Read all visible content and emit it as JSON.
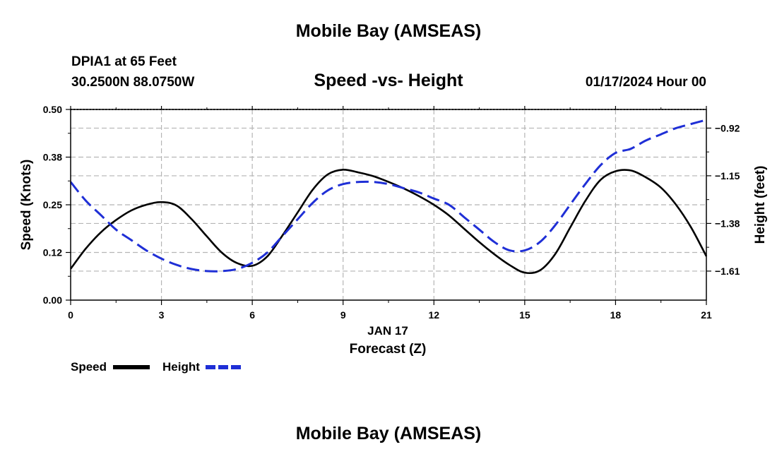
{
  "header": {
    "title": "Mobile Bay (AMSEAS)",
    "station": "DPIA1 at 65 Feet",
    "coordinates": "30.2500N  88.0750W",
    "subtitle": "Speed -vs- Height",
    "datetime": "01/17/2024 Hour 00"
  },
  "footer": {
    "title": "Mobile Bay (AMSEAS)"
  },
  "chart_data": {
    "type": "line",
    "title": "Speed -vs- Height",
    "x": [
      0,
      0.5,
      1,
      1.5,
      2,
      2.5,
      3,
      3.5,
      4,
      4.5,
      5,
      5.5,
      6,
      6.5,
      7,
      7.5,
      8,
      8.5,
      9,
      9.5,
      10,
      10.5,
      11,
      11.5,
      12,
      12.5,
      13,
      13.5,
      14,
      14.5,
      15,
      15.5,
      16,
      16.5,
      17,
      17.5,
      18,
      18.5,
      19,
      19.5,
      20,
      20.5,
      21
    ],
    "xlabel": "Forecast (Z)",
    "xlabel_date": "JAN 17",
    "xlim": [
      0,
      21
    ],
    "xticks": [
      0,
      3,
      6,
      9,
      12,
      15,
      18,
      21
    ],
    "xtick_labels": [
      "0",
      "3",
      "6",
      "9",
      "12",
      "15",
      "18",
      "21"
    ],
    "ylabel": "Speed (Knots)",
    "ylim": [
      0,
      0.5
    ],
    "yticks": [
      0,
      0.125,
      0.25,
      0.375,
      0.5
    ],
    "ytick_labels": [
      "0.00",
      "0.12",
      "0.25",
      "0.38",
      "0.50"
    ],
    "y2label": "Height (feet)",
    "y2lim": [
      -1.75,
      -0.83
    ],
    "y2ticks": [
      -1.61,
      -1.38,
      -1.15,
      -0.92
    ],
    "y2tick_labels": [
      "−1.61",
      "−1.38",
      "−1.15",
      "−0.92"
    ],
    "grid": true,
    "legend_position": "bottom-left",
    "series": [
      {
        "name": "Speed",
        "axis": "left",
        "color": "#000000",
        "dash": "solid",
        "values": [
          0.082,
          0.135,
          0.178,
          0.21,
          0.235,
          0.25,
          0.257,
          0.248,
          0.212,
          0.167,
          0.124,
          0.097,
          0.09,
          0.115,
          0.17,
          0.23,
          0.29,
          0.33,
          0.342,
          0.335,
          0.325,
          0.31,
          0.293,
          0.273,
          0.25,
          0.222,
          0.187,
          0.152,
          0.12,
          0.092,
          0.072,
          0.078,
          0.12,
          0.19,
          0.26,
          0.315,
          0.338,
          0.34,
          0.322,
          0.295,
          0.25,
          0.19,
          0.115
        ]
      },
      {
        "name": "Height",
        "axis": "right",
        "color": "#1f2fd6",
        "dash": "dashed",
        "values": [
          -1.18,
          -1.27,
          -1.34,
          -1.41,
          -1.46,
          -1.51,
          -1.55,
          -1.58,
          -1.6,
          -1.61,
          -1.61,
          -1.6,
          -1.57,
          -1.52,
          -1.44,
          -1.36,
          -1.28,
          -1.22,
          -1.19,
          -1.18,
          -1.18,
          -1.19,
          -1.21,
          -1.23,
          -1.26,
          -1.29,
          -1.35,
          -1.41,
          -1.47,
          -1.51,
          -1.51,
          -1.47,
          -1.39,
          -1.29,
          -1.19,
          -1.1,
          -1.04,
          -1.02,
          -0.98,
          -0.95,
          -0.92,
          -0.9,
          -0.88
        ]
      }
    ]
  }
}
